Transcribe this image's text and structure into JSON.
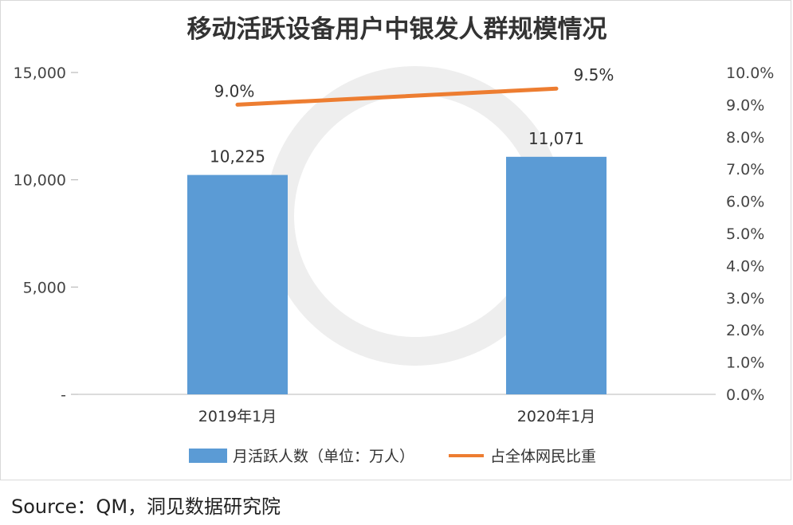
{
  "chart_data": {
    "type": "bar",
    "title": "移动活跃设备用户中银发人群规模情况",
    "categories": [
      "2019年1月",
      "2020年1月"
    ],
    "series": [
      {
        "name": "月活跃人数（单位：万人）",
        "type": "bar",
        "axis": "left",
        "values": [
          10225,
          11071
        ],
        "labels": [
          "10,225",
          "11,071"
        ],
        "color": "#5b9bd5"
      },
      {
        "name": "占全体网民比重",
        "type": "line",
        "axis": "right",
        "values": [
          9.0,
          9.5
        ],
        "labels": [
          "9.0%",
          "9.5%"
        ],
        "color": "#ed7d31"
      }
    ],
    "y_left": {
      "range": [
        0,
        15000
      ],
      "ticks": [
        0,
        5000,
        10000,
        15000
      ],
      "tick_labels": [
        "-",
        "5,000",
        "10,000",
        "15,000"
      ]
    },
    "y_right": {
      "range": [
        0,
        10
      ],
      "ticks": [
        0,
        1,
        2,
        3,
        4,
        5,
        6,
        7,
        8,
        9,
        10
      ],
      "tick_labels": [
        "0.0%",
        "1.0%",
        "2.0%",
        "3.0%",
        "4.0%",
        "5.0%",
        "6.0%",
        "7.0%",
        "8.0%",
        "9.0%",
        "10.0%"
      ]
    },
    "grid": false,
    "legend_position": "bottom"
  },
  "source": "Source：QM，洞见数据研究院"
}
